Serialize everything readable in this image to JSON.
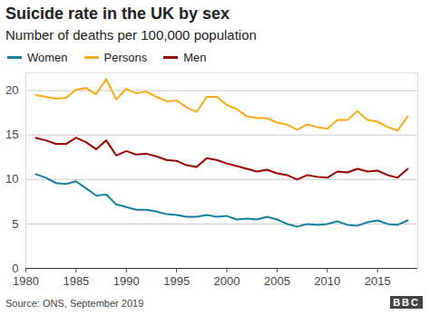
{
  "chart_data": {
    "type": "line",
    "title": "Suicide rate in the UK by sex",
    "subtitle": "Number of deaths per 100,000 population",
    "source": "Source: ONS, September 2019",
    "logo": "BBC",
    "x": [
      1981,
      1982,
      1983,
      1984,
      1985,
      1986,
      1987,
      1988,
      1989,
      1990,
      1991,
      1992,
      1993,
      1994,
      1995,
      1996,
      1997,
      1998,
      1999,
      2000,
      2001,
      2002,
      2003,
      2004,
      2005,
      2006,
      2007,
      2008,
      2009,
      2010,
      2011,
      2012,
      2013,
      2014,
      2015,
      2016,
      2017,
      2018
    ],
    "series": [
      {
        "name": "Women",
        "color": "#1380A1",
        "values": [
          10.6,
          10.2,
          9.6,
          9.5,
          9.8,
          9.0,
          8.2,
          8.3,
          7.2,
          6.9,
          6.6,
          6.6,
          6.4,
          6.1,
          6.0,
          5.8,
          5.8,
          6.0,
          5.8,
          5.9,
          5.5,
          5.6,
          5.5,
          5.8,
          5.5,
          5.0,
          4.7,
          5.0,
          4.9,
          5.0,
          5.3,
          4.9,
          4.8,
          5.2,
          5.4,
          5.0,
          4.9,
          5.4
        ]
      },
      {
        "name": "Persons",
        "color": "#FAAB18",
        "values": [
          19.5,
          19.3,
          19.1,
          19.2,
          20.1,
          20.3,
          19.6,
          21.3,
          19.0,
          20.2,
          19.7,
          19.9,
          19.3,
          18.8,
          18.9,
          18.1,
          17.6,
          19.3,
          19.3,
          18.4,
          17.9,
          17.1,
          16.9,
          16.9,
          16.4,
          16.2,
          15.6,
          16.2,
          15.9,
          15.7,
          16.7,
          16.7,
          17.7,
          16.7,
          16.5,
          15.9,
          15.5,
          17.1
        ]
      },
      {
        "name": "Men",
        "color": "#990000",
        "values": [
          14.7,
          14.4,
          14.0,
          14.0,
          14.7,
          14.2,
          13.4,
          14.4,
          12.7,
          13.2,
          12.8,
          12.9,
          12.6,
          12.2,
          12.1,
          11.6,
          11.4,
          12.4,
          12.2,
          11.8,
          11.5,
          11.2,
          10.9,
          11.1,
          10.7,
          10.5,
          10.0,
          10.5,
          10.3,
          10.2,
          10.9,
          10.8,
          11.2,
          10.9,
          11.0,
          10.5,
          10.2,
          11.2
        ]
      }
    ],
    "xlim": [
      1980,
      2019
    ],
    "xticks": [
      1980,
      1985,
      1990,
      1995,
      2000,
      2005,
      2010,
      2015
    ],
    "ylim": [
      0,
      22
    ],
    "yticks": [
      0,
      5,
      10,
      15,
      20
    ],
    "grid": true,
    "legend": "top-left"
  }
}
